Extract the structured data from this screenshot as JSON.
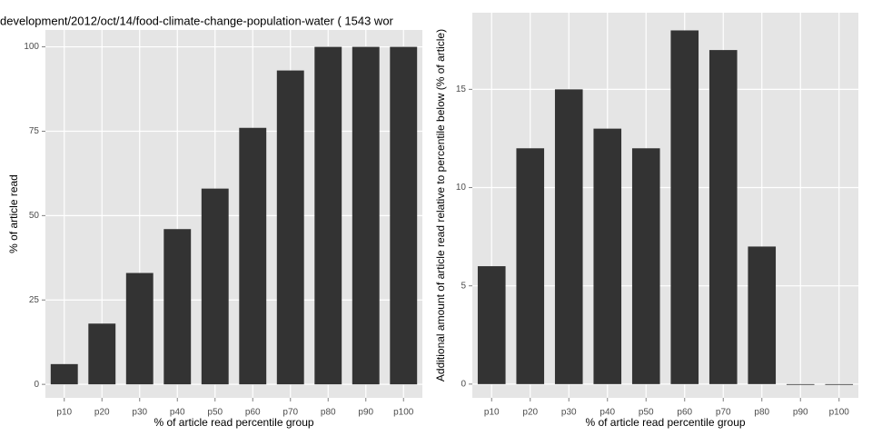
{
  "chart_data": [
    {
      "type": "bar",
      "title": "development/2012/oct/14/food-climate-change-population-water ( 1543 wor",
      "x_label": "% of article read percentile group",
      "y_label": "% of article read",
      "categories": [
        "p10",
        "p20",
        "p30",
        "p40",
        "p50",
        "p60",
        "p70",
        "p80",
        "p90",
        "p100"
      ],
      "values": [
        6,
        18,
        33,
        46,
        58,
        76,
        93,
        100,
        100,
        100
      ],
      "color": "#333333",
      "ylim": [
        -4,
        105
      ],
      "yticks": [
        0,
        25,
        50,
        75,
        100
      ],
      "grid": true
    },
    {
      "type": "bar",
      "x_label": "% of article read percentile group",
      "y_label": "Additional amount of article read relative to percentile below (% of article)",
      "categories": [
        "p10",
        "p20",
        "p30",
        "p40",
        "p50",
        "p60",
        "p70",
        "p80",
        "p90",
        "p100"
      ],
      "values": [
        6,
        12,
        15,
        13,
        12,
        18,
        17,
        7,
        0,
        0
      ],
      "color": "#333333",
      "ylim": [
        -0.7,
        18.9
      ],
      "yticks": [
        0,
        5,
        10,
        15
      ],
      "grid": true
    }
  ]
}
